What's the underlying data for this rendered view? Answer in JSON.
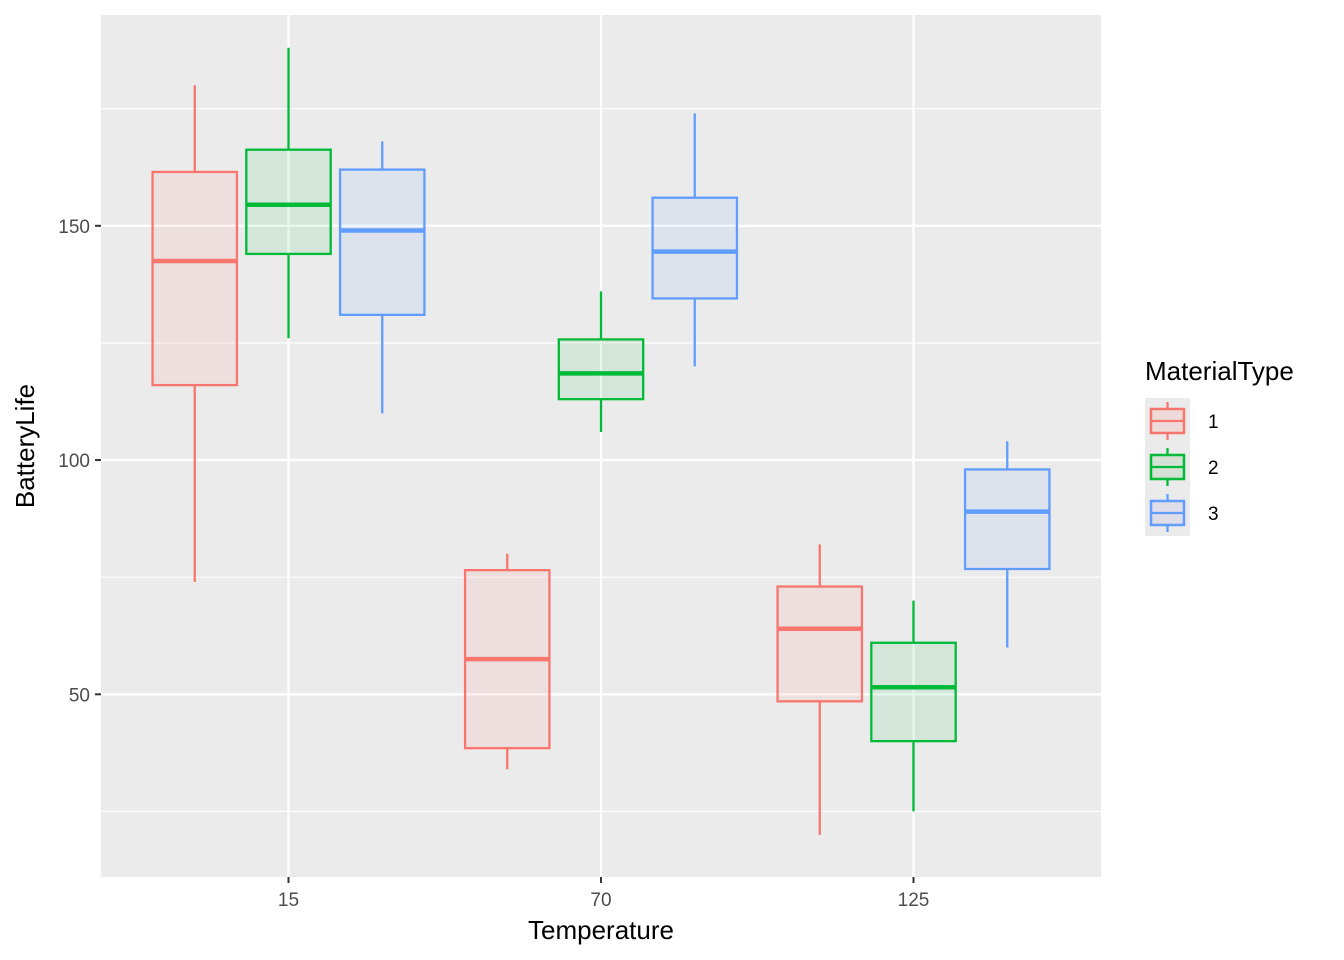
{
  "chart_data": {
    "type": "boxplot",
    "xlabel": "Temperature",
    "ylabel": "BatteryLife",
    "categories": [
      "15",
      "70",
      "125"
    ],
    "ylim": [
      11,
      195
    ],
    "yticks": [
      50,
      100,
      150
    ],
    "grid": true,
    "legend": {
      "title": "MaterialType",
      "position": "right"
    },
    "series": [
      {
        "name": "1",
        "color": "#F8766D",
        "boxes": [
          {
            "category": "15",
            "min": 74,
            "q1": 116,
            "median": 142.5,
            "q3": 161.5,
            "max": 180
          },
          {
            "category": "70",
            "min": 34,
            "q1": 38.5,
            "median": 57.5,
            "q3": 76.5,
            "max": 80
          },
          {
            "category": "125",
            "min": 20,
            "q1": 48.5,
            "median": 64,
            "q3": 73,
            "max": 82
          }
        ]
      },
      {
        "name": "2",
        "color": "#00BA38",
        "boxes": [
          {
            "category": "15",
            "min": 126,
            "q1": 144,
            "median": 154.5,
            "q3": 166.25,
            "max": 188
          },
          {
            "category": "70",
            "min": 106,
            "q1": 113,
            "median": 118.5,
            "q3": 125.75,
            "max": 136
          },
          {
            "category": "125",
            "min": 25,
            "q1": 40,
            "median": 51.5,
            "q3": 61,
            "max": 70
          }
        ]
      },
      {
        "name": "3",
        "color": "#619CFF",
        "boxes": [
          {
            "category": "15",
            "min": 110,
            "q1": 131,
            "median": 149,
            "q3": 162,
            "max": 168
          },
          {
            "category": "70",
            "min": 120,
            "q1": 134.5,
            "median": 144.5,
            "q3": 156,
            "max": 174
          },
          {
            "category": "125",
            "min": 60,
            "q1": 76.75,
            "median": 89,
            "q3": 98,
            "max": 104
          }
        ]
      }
    ]
  }
}
